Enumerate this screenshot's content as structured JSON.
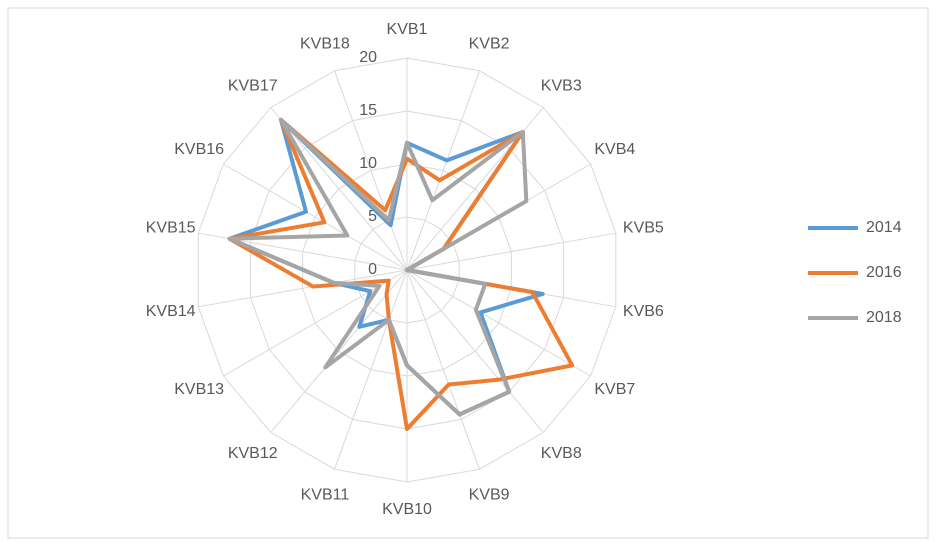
{
  "chart_data": {
    "type": "radar",
    "categories": [
      "KVB1",
      "KVB2",
      "KVB3",
      "KVB4",
      "KVB5",
      "KVB6",
      "KVB7",
      "KVB8",
      "KVB9",
      "KVB10",
      "KVB11",
      "KVB12",
      "KVB13",
      "KVB14",
      "KVB15",
      "KVB16",
      "KVB17",
      "KVB18"
    ],
    "series": [
      {
        "name": "2014",
        "color": "#5b9bd5",
        "values": [
          12,
          11,
          17,
          4,
          0,
          13,
          8,
          15,
          14.5,
          9,
          5,
          7,
          4,
          7,
          17,
          11,
          18.5,
          4.5
        ]
      },
      {
        "name": "2016",
        "color": "#ed7d31",
        "values": [
          10.5,
          9,
          17,
          4,
          0,
          12,
          18,
          13.5,
          11.5,
          15,
          5,
          3,
          2,
          9,
          17,
          9,
          18.5,
          6
        ]
      },
      {
        "name": "2018",
        "color": "#a5a5a5",
        "values": [
          12,
          7,
          17,
          13,
          0,
          7.5,
          7.5,
          15,
          14.5,
          9,
          5,
          12,
          3,
          7,
          17,
          6.5,
          18.5,
          5
        ]
      }
    ],
    "ylim": [
      0,
      20
    ],
    "yticks": [
      0,
      5,
      10,
      15,
      20
    ],
    "grid": true,
    "legend": "right"
  }
}
